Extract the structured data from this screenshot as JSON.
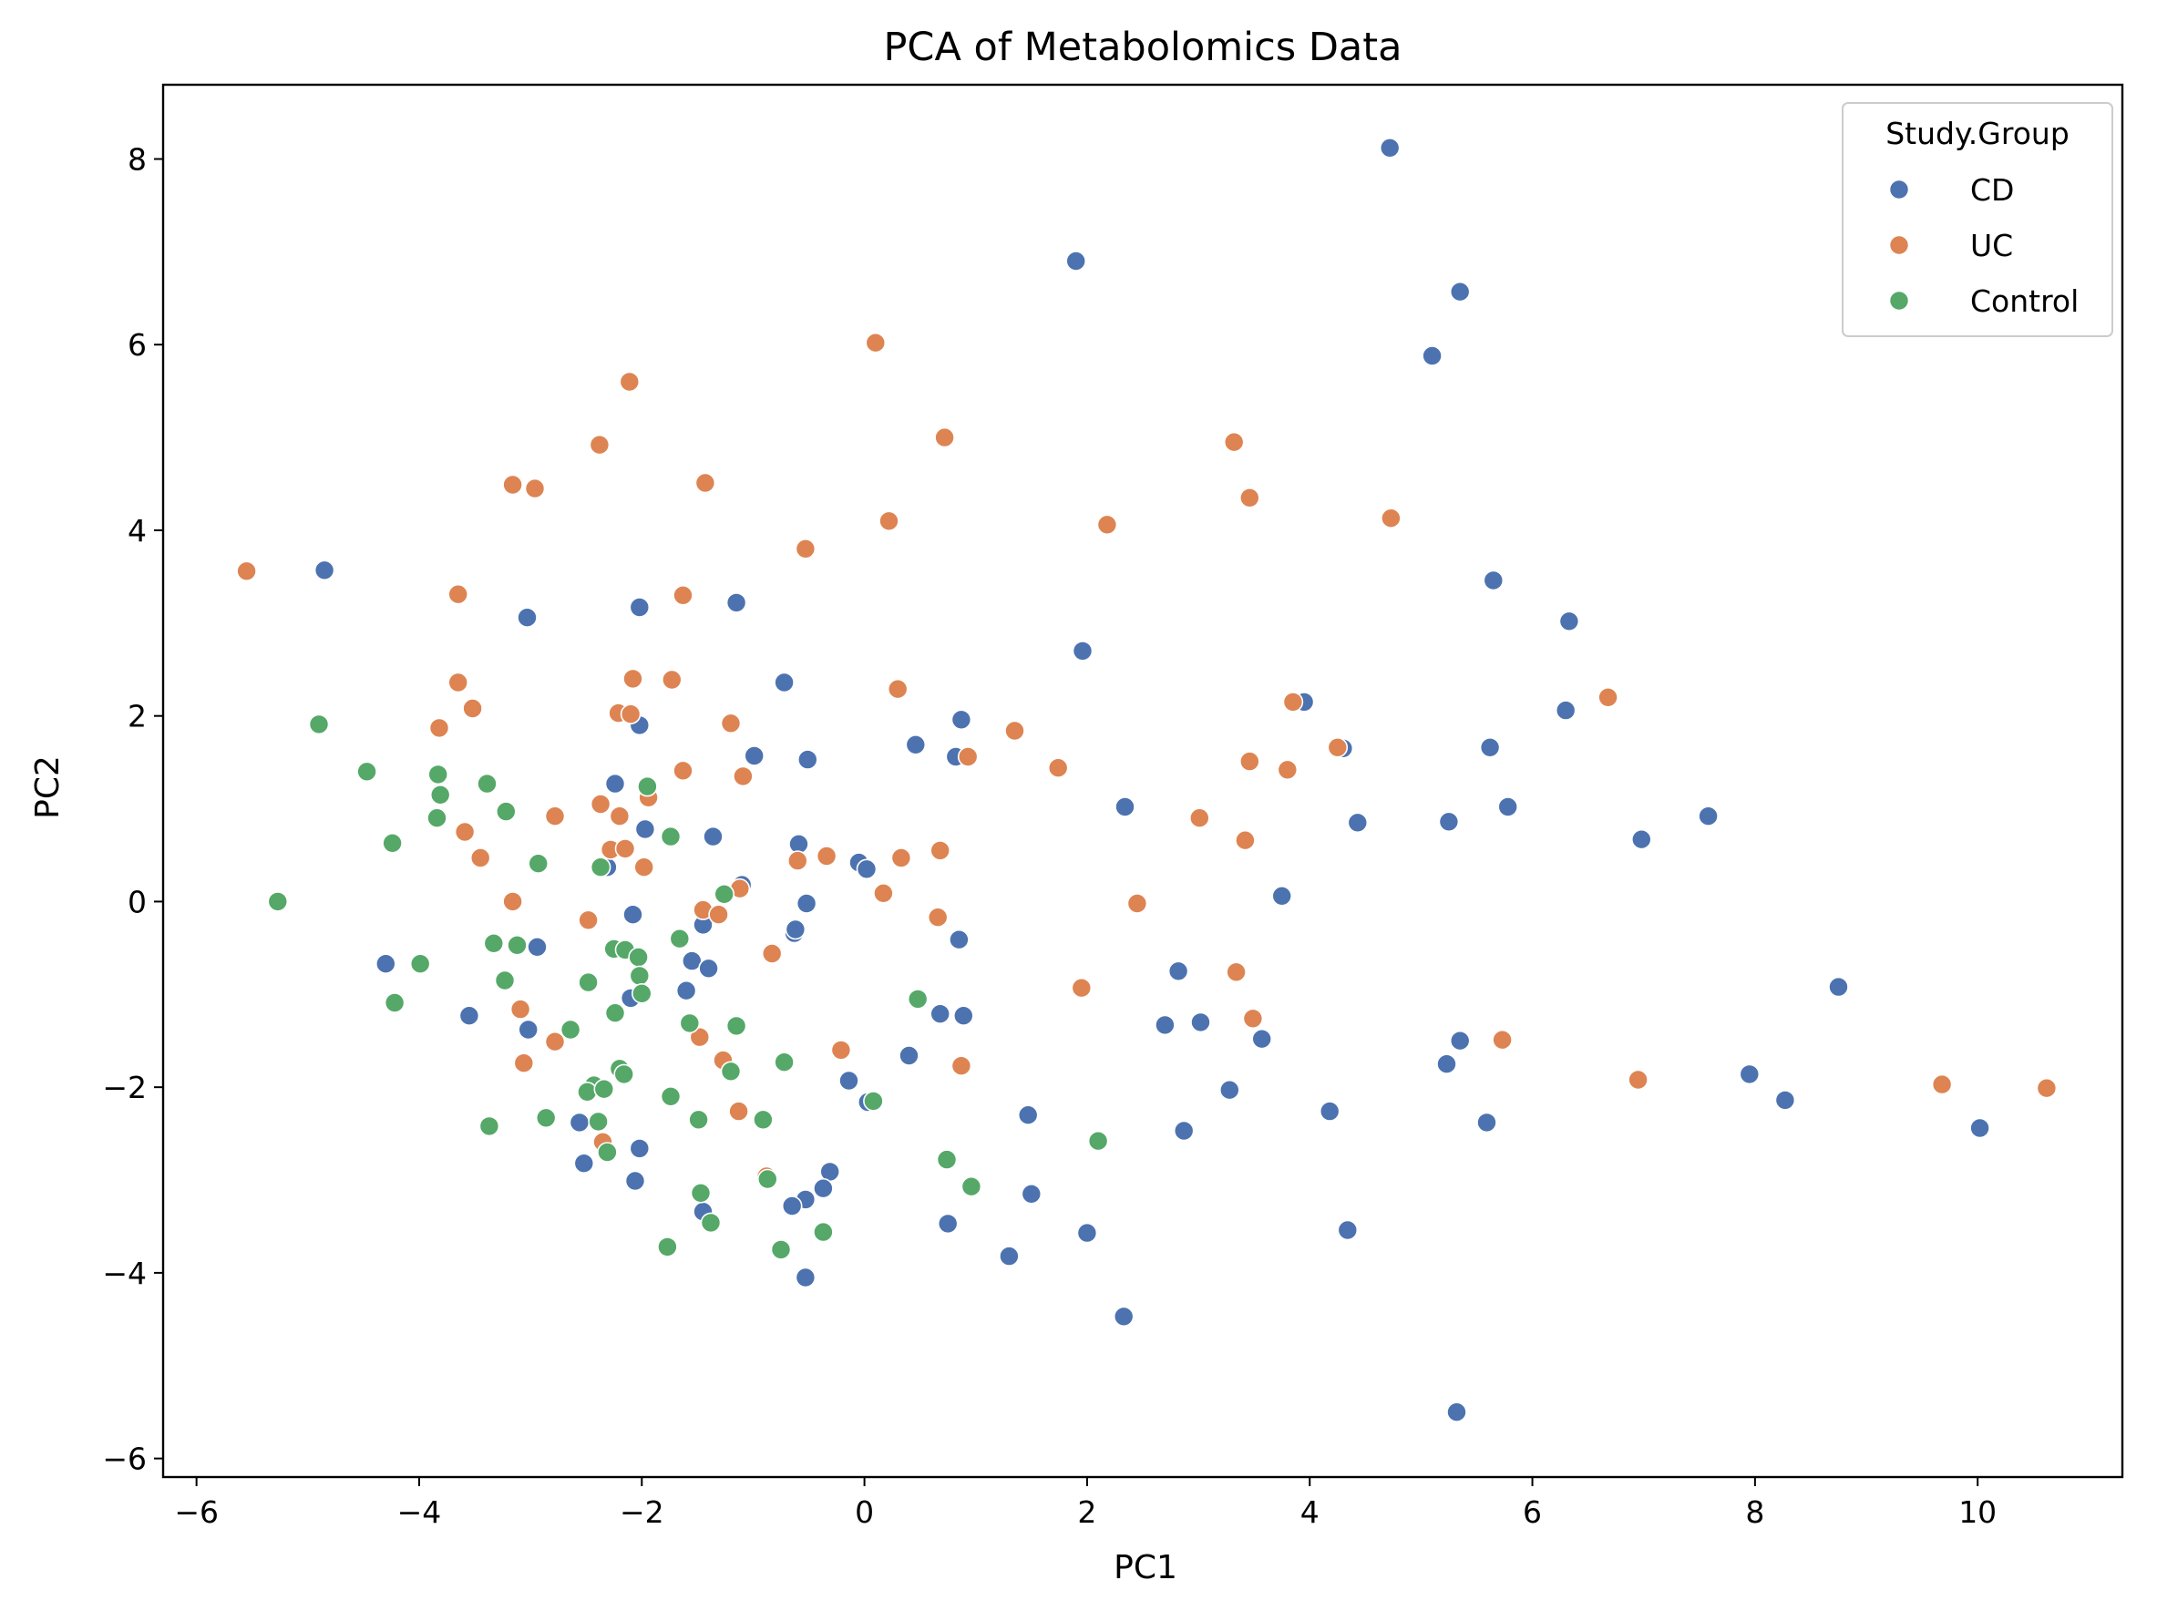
{
  "chart_data": {
    "type": "scatter",
    "title": "PCA of Metabolomics Data",
    "xlabel": "PC1",
    "ylabel": "PC2",
    "xlim": [
      -6.3,
      11.3
    ],
    "ylim": [
      -6.2,
      8.8
    ],
    "xticks": [
      -6,
      -4,
      -2,
      0,
      2,
      4,
      6,
      8,
      10
    ],
    "yticks": [
      -6,
      -4,
      -2,
      0,
      2,
      4,
      6,
      8
    ],
    "grid": false,
    "legend": {
      "title": "Study.Group",
      "position": "top-right"
    },
    "series": [
      {
        "name": "CD",
        "color": "#4C72B0",
        "points": [
          [
            4.72,
            8.12
          ],
          [
            1.9,
            6.9
          ],
          [
            5.35,
            6.57
          ],
          [
            5.1,
            5.88
          ],
          [
            -4.85,
            3.57
          ],
          [
            -3.03,
            3.06
          ],
          [
            -2.02,
            3.17
          ],
          [
            -1.15,
            3.22
          ],
          [
            5.65,
            3.46
          ],
          [
            6.33,
            3.02
          ],
          [
            1.96,
            2.7
          ],
          [
            -0.72,
            2.36
          ],
          [
            3.95,
            2.15
          ],
          [
            6.3,
            2.06
          ],
          [
            0.87,
            1.96
          ],
          [
            -2.02,
            1.9
          ],
          [
            4.3,
            1.65
          ],
          [
            5.62,
            1.66
          ],
          [
            0.46,
            1.69
          ],
          [
            0.82,
            1.56
          ],
          [
            -0.99,
            1.57
          ],
          [
            -0.51,
            1.53
          ],
          [
            -2.24,
            1.27
          ],
          [
            2.34,
            1.02
          ],
          [
            5.78,
            1.02
          ],
          [
            4.43,
            0.85
          ],
          [
            5.25,
            0.86
          ],
          [
            -1.97,
            0.78
          ],
          [
            -1.36,
            0.7
          ],
          [
            6.98,
            0.67
          ],
          [
            7.58,
            0.92
          ],
          [
            -0.59,
            0.62
          ],
          [
            -2.31,
            0.37
          ],
          [
            -0.05,
            0.42
          ],
          [
            0.02,
            0.35
          ],
          [
            -1.1,
            0.18
          ],
          [
            3.75,
            0.06
          ],
          [
            -0.52,
            -0.02
          ],
          [
            -2.08,
            -0.14
          ],
          [
            -0.63,
            -0.34
          ],
          [
            -0.62,
            -0.3
          ],
          [
            -1.45,
            -0.25
          ],
          [
            0.85,
            -0.41
          ],
          [
            -2.94,
            -0.49
          ],
          [
            -4.3,
            -0.67
          ],
          [
            -1.55,
            -0.64
          ],
          [
            -1.4,
            -0.72
          ],
          [
            2.82,
            -0.75
          ],
          [
            8.75,
            -0.92
          ],
          [
            -1.6,
            -0.96
          ],
          [
            -2.1,
            -1.04
          ],
          [
            -3.55,
            -1.23
          ],
          [
            -3.02,
            -1.38
          ],
          [
            0.68,
            -1.21
          ],
          [
            0.89,
            -1.23
          ],
          [
            2.7,
            -1.33
          ],
          [
            3.02,
            -1.3
          ],
          [
            3.57,
            -1.48
          ],
          [
            5.35,
            -1.5
          ],
          [
            0.4,
            -1.66
          ],
          [
            5.23,
            -1.75
          ],
          [
            -0.14,
            -1.93
          ],
          [
            7.95,
            -1.86
          ],
          [
            0.03,
            -2.16
          ],
          [
            3.28,
            -2.03
          ],
          [
            8.27,
            -2.14
          ],
          [
            1.47,
            -2.3
          ],
          [
            4.18,
            -2.26
          ],
          [
            -2.56,
            -2.38
          ],
          [
            5.59,
            -2.38
          ],
          [
            10.02,
            -2.44
          ],
          [
            2.87,
            -2.47
          ],
          [
            -2.02,
            -2.66
          ],
          [
            -2.52,
            -2.82
          ],
          [
            -0.31,
            -2.91
          ],
          [
            -2.06,
            -3.01
          ],
          [
            -0.37,
            -3.09
          ],
          [
            -0.53,
            -3.21
          ],
          [
            -0.65,
            -3.28
          ],
          [
            1.5,
            -3.15
          ],
          [
            -1.45,
            -3.34
          ],
          [
            0.75,
            -3.47
          ],
          [
            2.0,
            -3.57
          ],
          [
            4.34,
            -3.54
          ],
          [
            1.3,
            -3.82
          ],
          [
            -0.53,
            -4.05
          ],
          [
            2.33,
            -4.47
          ],
          [
            5.32,
            -5.5
          ]
        ]
      },
      {
        "name": "UC",
        "color": "#DD8452",
        "points": [
          [
            0.1,
            6.02
          ],
          [
            -2.11,
            5.6
          ],
          [
            0.72,
            5.0
          ],
          [
            3.32,
            4.95
          ],
          [
            -2.38,
            4.92
          ],
          [
            -1.43,
            4.51
          ],
          [
            -3.16,
            4.49
          ],
          [
            -2.96,
            4.45
          ],
          [
            3.46,
            4.35
          ],
          [
            0.22,
            4.1
          ],
          [
            2.18,
            4.06
          ],
          [
            4.73,
            4.13
          ],
          [
            -0.53,
            3.8
          ],
          [
            -5.55,
            3.56
          ],
          [
            -3.65,
            3.31
          ],
          [
            -1.63,
            3.3
          ],
          [
            -3.65,
            2.36
          ],
          [
            -2.08,
            2.4
          ],
          [
            -1.73,
            2.39
          ],
          [
            0.3,
            2.29
          ],
          [
            6.68,
            2.2
          ],
          [
            3.85,
            2.15
          ],
          [
            -3.52,
            2.08
          ],
          [
            -3.82,
            1.87
          ],
          [
            -2.21,
            2.03
          ],
          [
            -2.1,
            2.02
          ],
          [
            -1.2,
            1.92
          ],
          [
            1.35,
            1.84
          ],
          [
            0.93,
            1.56
          ],
          [
            4.25,
            1.66
          ],
          [
            3.46,
            1.51
          ],
          [
            1.74,
            1.44
          ],
          [
            3.8,
            1.42
          ],
          [
            -1.63,
            1.41
          ],
          [
            -1.09,
            1.35
          ],
          [
            -1.94,
            1.12
          ],
          [
            -2.37,
            1.05
          ],
          [
            -2.78,
            0.92
          ],
          [
            -2.2,
            0.92
          ],
          [
            3.01,
            0.9
          ],
          [
            -3.59,
            0.75
          ],
          [
            3.42,
            0.66
          ],
          [
            -2.28,
            0.56
          ],
          [
            -2.15,
            0.57
          ],
          [
            0.68,
            0.55
          ],
          [
            -0.34,
            0.49
          ],
          [
            0.33,
            0.47
          ],
          [
            -3.45,
            0.47
          ],
          [
            -0.6,
            0.44
          ],
          [
            -1.98,
            0.37
          ],
          [
            -1.12,
            0.14
          ],
          [
            0.17,
            0.09
          ],
          [
            2.45,
            -0.02
          ],
          [
            -3.16,
            0.0
          ],
          [
            -1.45,
            -0.09
          ],
          [
            -1.31,
            -0.14
          ],
          [
            0.66,
            -0.17
          ],
          [
            -2.48,
            -0.2
          ],
          [
            -0.83,
            -0.56
          ],
          [
            3.34,
            -0.76
          ],
          [
            1.95,
            -0.93
          ],
          [
            3.49,
            -1.26
          ],
          [
            -1.48,
            -1.46
          ],
          [
            5.73,
            -1.49
          ],
          [
            -2.78,
            -1.51
          ],
          [
            -3.09,
            -1.16
          ],
          [
            -0.21,
            -1.6
          ],
          [
            -1.27,
            -1.71
          ],
          [
            -3.06,
            -1.74
          ],
          [
            0.87,
            -1.77
          ],
          [
            6.95,
            -1.92
          ],
          [
            9.68,
            -1.97
          ],
          [
            10.62,
            -2.01
          ],
          [
            -1.13,
            -2.26
          ],
          [
            -2.35,
            -2.59
          ],
          [
            -0.88,
            -2.96
          ]
        ]
      },
      {
        "name": "Control",
        "color": "#55A868",
        "points": [
          [
            -4.9,
            1.91
          ],
          [
            -4.47,
            1.4
          ],
          [
            -3.83,
            1.37
          ],
          [
            -3.39,
            1.27
          ],
          [
            -3.81,
            1.15
          ],
          [
            -1.95,
            1.24
          ],
          [
            -3.22,
            0.97
          ],
          [
            -3.84,
            0.9
          ],
          [
            -1.74,
            0.7
          ],
          [
            -4.24,
            0.63
          ],
          [
            -2.93,
            0.41
          ],
          [
            -2.37,
            0.37
          ],
          [
            -1.26,
            0.08
          ],
          [
            -5.27,
            0.0
          ],
          [
            -3.33,
            -0.45
          ],
          [
            -3.12,
            -0.47
          ],
          [
            -1.66,
            -0.4
          ],
          [
            -2.25,
            -0.51
          ],
          [
            -2.15,
            -0.52
          ],
          [
            -3.99,
            -0.67
          ],
          [
            -2.03,
            -0.6
          ],
          [
            -2.02,
            -0.8
          ],
          [
            -3.23,
            -0.85
          ],
          [
            -2.48,
            -0.87
          ],
          [
            -2.0,
            -0.99
          ],
          [
            0.48,
            -1.05
          ],
          [
            -4.22,
            -1.09
          ],
          [
            -2.24,
            -1.2
          ],
          [
            -1.57,
            -1.31
          ],
          [
            -1.15,
            -1.34
          ],
          [
            -2.64,
            -1.38
          ],
          [
            -0.72,
            -1.73
          ],
          [
            -1.2,
            -1.83
          ],
          [
            -2.2,
            -1.8
          ],
          [
            -2.16,
            -1.86
          ],
          [
            -2.43,
            -1.98
          ],
          [
            -2.49,
            -2.05
          ],
          [
            -2.34,
            -2.02
          ],
          [
            -1.74,
            -2.1
          ],
          [
            0.08,
            -2.15
          ],
          [
            -2.86,
            -2.33
          ],
          [
            -1.49,
            -2.35
          ],
          [
            -0.91,
            -2.35
          ],
          [
            -2.39,
            -2.37
          ],
          [
            -3.37,
            -2.42
          ],
          [
            2.1,
            -2.58
          ],
          [
            -2.31,
            -2.7
          ],
          [
            0.74,
            -2.78
          ],
          [
            -0.87,
            -2.99
          ],
          [
            0.96,
            -3.07
          ],
          [
            -1.47,
            -3.14
          ],
          [
            -1.38,
            -3.46
          ],
          [
            -0.37,
            -3.56
          ],
          [
            -1.77,
            -3.72
          ],
          [
            -0.75,
            -3.75
          ]
        ]
      }
    ]
  }
}
